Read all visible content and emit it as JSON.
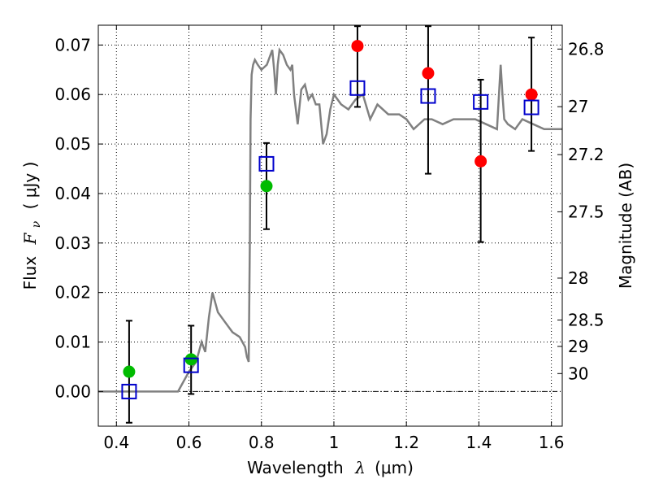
{
  "chart_data": {
    "type": "scatter",
    "xlabel": {
      "prefix": "Wavelength",
      "symbol": "λ",
      "unit": "(μm)"
    },
    "ylabel": {
      "prefix": "Flux",
      "symbol": "F",
      "subscript": "ν",
      "unit": "( μJy )"
    },
    "y2label": "Magnitude (AB)",
    "xlim": [
      0.35,
      1.63
    ],
    "ylim": [
      -0.007,
      0.074
    ],
    "grid": true,
    "xticks": [
      {
        "v": 0.4,
        "label": "0.4"
      },
      {
        "v": 0.6,
        "label": "0.6"
      },
      {
        "v": 0.8,
        "label": "0.8"
      },
      {
        "v": 1.0,
        "label": "1"
      },
      {
        "v": 1.2,
        "label": "1.2"
      },
      {
        "v": 1.4,
        "label": "1.4"
      },
      {
        "v": 1.6,
        "label": "1.6"
      }
    ],
    "yticks": [
      {
        "v": 0.0,
        "label": "0.00"
      },
      {
        "v": 0.01,
        "label": "0.01"
      },
      {
        "v": 0.02,
        "label": "0.02"
      },
      {
        "v": 0.03,
        "label": "0.03"
      },
      {
        "v": 0.04,
        "label": "0.04"
      },
      {
        "v": 0.05,
        "label": "0.05"
      },
      {
        "v": 0.06,
        "label": "0.06"
      },
      {
        "v": 0.07,
        "label": "0.07"
      }
    ],
    "y2ticks": [
      {
        "mag": 26.8,
        "label": "26.8"
      },
      {
        "mag": 27.0,
        "label": "27"
      },
      {
        "mag": 27.2,
        "label": "27.2"
      },
      {
        "mag": 27.5,
        "label": "27.5"
      },
      {
        "mag": 28.0,
        "label": "28"
      },
      {
        "mag": 28.5,
        "label": "28.5"
      },
      {
        "mag": 29.0,
        "label": "29"
      },
      {
        "mag": 30.0,
        "label": "30"
      }
    ],
    "model_spectrum": {
      "color": "#808080",
      "x": [
        0.35,
        0.57,
        0.6,
        0.62,
        0.635,
        0.645,
        0.655,
        0.665,
        0.68,
        0.7,
        0.72,
        0.74,
        0.755,
        0.76,
        0.765,
        0.768,
        0.77,
        0.773,
        0.777,
        0.782,
        0.79,
        0.8,
        0.815,
        0.83,
        0.835,
        0.84,
        0.845,
        0.85,
        0.86,
        0.87,
        0.88,
        0.885,
        0.89,
        0.9,
        0.91,
        0.92,
        0.93,
        0.94,
        0.95,
        0.96,
        0.97,
        0.98,
        0.99,
        1.0,
        1.02,
        1.04,
        1.06,
        1.08,
        1.1,
        1.12,
        1.15,
        1.18,
        1.2,
        1.22,
        1.25,
        1.27,
        1.3,
        1.33,
        1.36,
        1.39,
        1.42,
        1.45,
        1.46,
        1.465,
        1.47,
        1.48,
        1.5,
        1.52,
        1.55,
        1.58,
        1.6,
        1.63
      ],
      "y": [
        0.0,
        0.0,
        0.004,
        0.006,
        0.01,
        0.008,
        0.015,
        0.02,
        0.016,
        0.014,
        0.012,
        0.011,
        0.009,
        0.007,
        0.006,
        0.03,
        0.055,
        0.064,
        0.066,
        0.067,
        0.066,
        0.065,
        0.066,
        0.069,
        0.065,
        0.06,
        0.066,
        0.069,
        0.068,
        0.066,
        0.065,
        0.066,
        0.06,
        0.054,
        0.061,
        0.062,
        0.059,
        0.06,
        0.058,
        0.058,
        0.05,
        0.052,
        0.057,
        0.06,
        0.058,
        0.057,
        0.059,
        0.06,
        0.055,
        0.058,
        0.056,
        0.056,
        0.055,
        0.053,
        0.055,
        0.055,
        0.054,
        0.055,
        0.055,
        0.055,
        0.054,
        0.053,
        0.066,
        0.06,
        0.055,
        0.054,
        0.053,
        0.055,
        0.054,
        0.053,
        0.053,
        0.053
      ]
    },
    "errorbars": [
      {
        "x": 0.435,
        "y": 0.004,
        "low": -0.0063,
        "high": 0.0143
      },
      {
        "x": 0.606,
        "y": 0.0065,
        "low": -0.0005,
        "high": 0.0133
      },
      {
        "x": 0.814,
        "y": 0.0415,
        "low": 0.0328,
        "high": 0.0502
      },
      {
        "x": 1.065,
        "y": 0.0615,
        "low": 0.0575,
        "high": 0.0738
      },
      {
        "x": 1.26,
        "y": 0.0598,
        "low": 0.044,
        "high": 0.0738
      },
      {
        "x": 1.405,
        "y": 0.0585,
        "low": 0.0302,
        "high": 0.063
      },
      {
        "x": 1.545,
        "y": 0.06,
        "low": 0.0486,
        "high": 0.0715
      }
    ],
    "series": [
      {
        "kind": "green-circle",
        "color": "#00bb00",
        "x": [
          0.435,
          0.606,
          0.814
        ],
        "y": [
          0.004,
          0.0065,
          0.0415
        ]
      },
      {
        "kind": "red-circle",
        "color": "#ff0000",
        "x": [
          1.065,
          1.26,
          1.405,
          1.545
        ],
        "y": [
          0.0698,
          0.0643,
          0.0465,
          0.06
        ]
      },
      {
        "kind": "blue-open-square",
        "color": "#0000cc",
        "x": [
          0.435,
          0.606,
          0.814,
          1.065,
          1.26,
          1.405,
          1.545
        ],
        "y": [
          0.0,
          0.0053,
          0.046,
          0.0613,
          0.0597,
          0.0585,
          0.0574
        ]
      }
    ]
  }
}
